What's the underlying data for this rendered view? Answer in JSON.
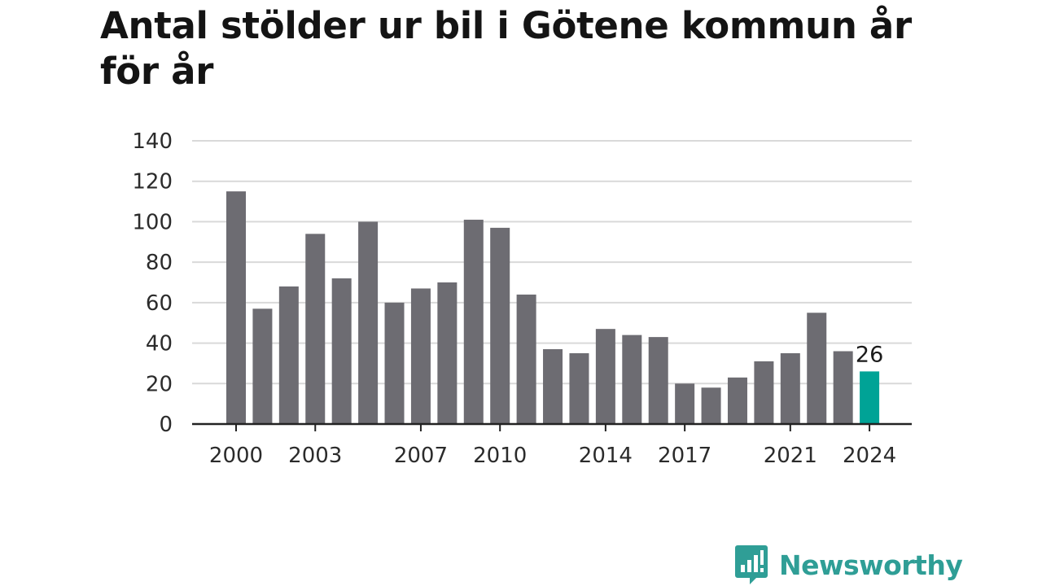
{
  "title": "Antal stölder ur bil i Götene kommun år för år",
  "brand": {
    "name": "Newsworthy",
    "icon": "newsworthy-logo-icon",
    "color": "#2f9e96"
  },
  "chart_data": {
    "type": "bar",
    "title": "Antal stölder ur bil i Götene kommun år för år",
    "xlabel": "",
    "ylabel": "",
    "categories": [
      "2000",
      "2001",
      "2002",
      "2003",
      "2004",
      "2005",
      "2006",
      "2007",
      "2008",
      "2009",
      "2010",
      "2011",
      "2012",
      "2013",
      "2014",
      "2015",
      "2016",
      "2017",
      "2018",
      "2019",
      "2020",
      "2021",
      "2022",
      "2023",
      "2024"
    ],
    "values": [
      115,
      57,
      68,
      94,
      72,
      100,
      60,
      67,
      70,
      101,
      97,
      64,
      37,
      35,
      47,
      44,
      43,
      20,
      18,
      23,
      31,
      35,
      55,
      36,
      26
    ],
    "x_tick_labels": [
      "2000",
      "2003",
      "2007",
      "2010",
      "2014",
      "2017",
      "2021",
      "2024"
    ],
    "y_ticks": [
      0,
      20,
      40,
      60,
      80,
      100,
      120,
      140
    ],
    "ylim": [
      0,
      140
    ],
    "grid": true,
    "legend": "none",
    "bar_color": "#6d6c72",
    "highlight_category": "2024",
    "highlight_color": "#00a396",
    "data_labels": [
      {
        "category": "2024",
        "text": "26"
      }
    ]
  }
}
